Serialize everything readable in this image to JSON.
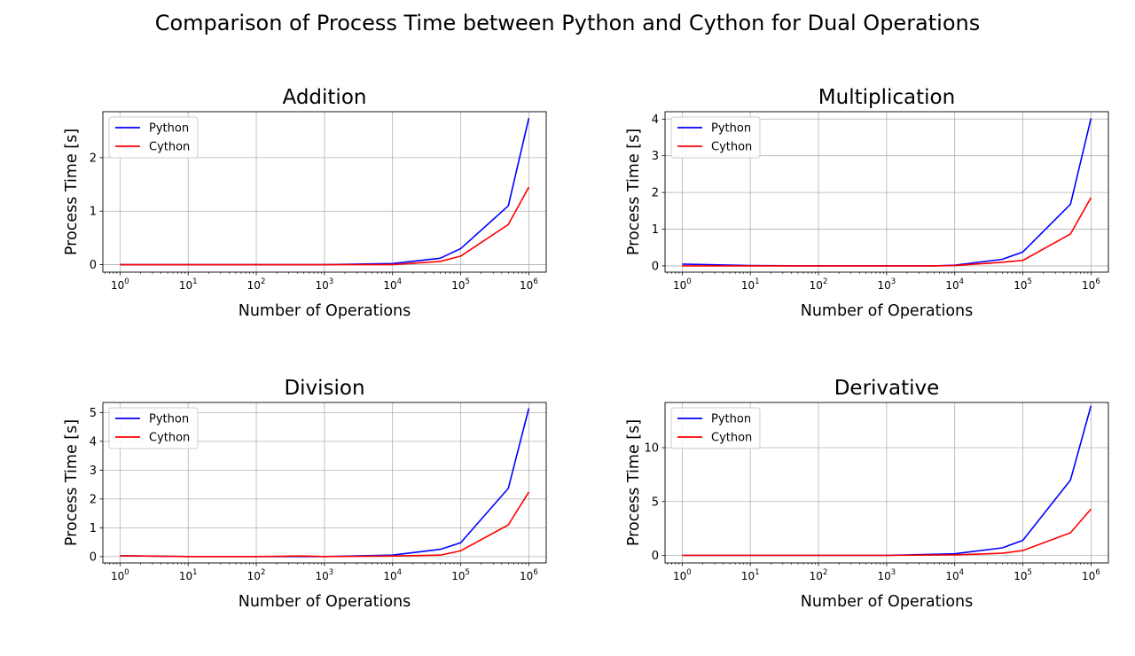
{
  "figure": {
    "suptitle": "Comparison of Process Time between Python and Cython for Dual Operations"
  },
  "chart_data": [
    {
      "type": "line",
      "title": "Addition",
      "xlabel": "Number of Operations",
      "ylabel": "Process Time [s]",
      "xscale": "log",
      "xlim": [
        0.56,
        1800000
      ],
      "ylim": [
        -0.14,
        2.86
      ],
      "yticks": [
        0,
        1,
        2
      ],
      "x": [
        1,
        10,
        100,
        1000,
        10000,
        50000,
        100000,
        500000,
        1000000
      ],
      "series": [
        {
          "name": "Python",
          "color": "#0000ff",
          "values": [
            0.0,
            0.0,
            0.0,
            0.0,
            0.02,
            0.12,
            0.3,
            1.1,
            2.74
          ]
        },
        {
          "name": "Cython",
          "color": "#ff0000",
          "values": [
            0.0,
            0.0,
            0.0,
            0.0,
            0.0,
            0.06,
            0.16,
            0.75,
            1.45
          ]
        }
      ],
      "grid": true,
      "legend": "upper left"
    },
    {
      "type": "line",
      "title": "Multiplication",
      "xlabel": "Number of Operations",
      "ylabel": "Process Time [s]",
      "xscale": "log",
      "xlim": [
        0.56,
        1800000
      ],
      "ylim": [
        -0.17,
        4.2
      ],
      "yticks": [
        0,
        1,
        2,
        3,
        4
      ],
      "x": [
        1,
        10,
        100,
        1000,
        5000,
        10000,
        50000,
        100000,
        500000,
        1000000
      ],
      "series": [
        {
          "name": "Python",
          "color": "#0000ff",
          "values": [
            0.05,
            0.01,
            0.0,
            0.0,
            0.0,
            0.02,
            0.18,
            0.38,
            1.68,
            4.02
          ]
        },
        {
          "name": "Cython",
          "color": "#ff0000",
          "values": [
            0.0,
            0.0,
            0.0,
            0.0,
            0.0,
            0.01,
            0.1,
            0.15,
            0.87,
            1.86
          ]
        }
      ],
      "grid": true,
      "legend": "upper left"
    },
    {
      "type": "line",
      "title": "Division",
      "xlabel": "Number of Operations",
      "ylabel": "Process Time [s]",
      "xscale": "log",
      "xlim": [
        0.56,
        1800000
      ],
      "ylim": [
        -0.22,
        5.35
      ],
      "yticks": [
        0,
        1,
        2,
        3,
        4,
        5
      ],
      "x": [
        1,
        10,
        100,
        500,
        1000,
        10000,
        50000,
        100000,
        500000,
        1000000
      ],
      "series": [
        {
          "name": "Python",
          "color": "#0000ff",
          "values": [
            0.03,
            0.0,
            0.0,
            0.0,
            0.0,
            0.05,
            0.25,
            0.48,
            2.37,
            5.15
          ]
        },
        {
          "name": "Cython",
          "color": "#ff0000",
          "values": [
            0.03,
            0.0,
            0.0,
            0.02,
            0.0,
            0.02,
            0.05,
            0.2,
            1.1,
            2.24
          ]
        }
      ],
      "grid": true,
      "legend": "upper left"
    },
    {
      "type": "line",
      "title": "Derivative",
      "xlabel": "Number of Operations",
      "ylabel": "Process Time [s]",
      "xscale": "log",
      "xlim": [
        0.56,
        1800000
      ],
      "ylim": [
        -0.7,
        14.2
      ],
      "yticks": [
        0,
        5,
        10
      ],
      "x": [
        1,
        10,
        100,
        1000,
        10000,
        50000,
        100000,
        500000,
        1000000
      ],
      "series": [
        {
          "name": "Python",
          "color": "#0000ff",
          "values": [
            0.0,
            0.0,
            0.0,
            0.0,
            0.15,
            0.7,
            1.4,
            7.0,
            13.9
          ]
        },
        {
          "name": "Cython",
          "color": "#ff0000",
          "values": [
            0.0,
            0.0,
            0.0,
            0.0,
            0.05,
            0.2,
            0.45,
            2.1,
            4.3
          ]
        }
      ],
      "grid": true,
      "legend": "upper left"
    }
  ]
}
